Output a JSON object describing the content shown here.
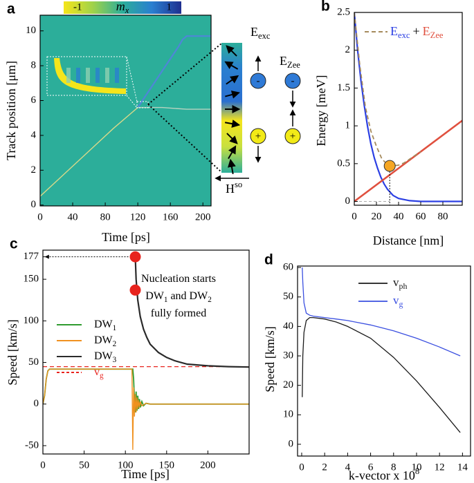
{
  "chart_data": [
    {
      "panel": "a",
      "type": "heatmap",
      "x_label": "Time [ps]",
      "y_label": "Track position [μm]",
      "xlim": [
        0,
        210
      ],
      "xticks": [
        0,
        40,
        80,
        120,
        160,
        200
      ],
      "ylim": [
        -0.05,
        10.9
      ],
      "yticks": [
        0,
        2,
        4,
        6,
        8,
        10
      ],
      "background": "#2cae9a",
      "colorbar": {
        "label": "m",
        "label_sub": "x",
        "lim": [
          -1,
          1
        ],
        "ticks": [
          -1,
          1
        ],
        "colors": [
          "#f5e51b",
          "#9fd24a",
          "#2cae9a",
          "#2a7fd0",
          "#1f2f8f"
        ]
      },
      "series": [
        {
          "color": "#d8d98a",
          "x": [
            0,
            30,
            60,
            90,
            120
          ],
          "values": [
            0.5,
            1.8,
            3.1,
            4.4,
            5.6
          ]
        },
        {
          "color": "#4f86d8",
          "x": [
            120,
            130,
            140,
            150,
            160,
            170,
            175,
            180,
            210
          ],
          "values": [
            5.6,
            6.3,
            7.0,
            7.7,
            8.4,
            9.1,
            9.5,
            9.7,
            9.7
          ]
        },
        {
          "color": "#b8d3c0",
          "x": [
            120,
            150,
            180,
            210
          ],
          "values": [
            5.6,
            5.6,
            5.5,
            5.5
          ]
        }
      ],
      "diagram": {
        "e_exc": {
          "name": "E",
          "sub": "exc"
        },
        "e_zee": {
          "name": "E",
          "sub": "Zee"
        },
        "h_so": {
          "name": "H",
          "sup": "so"
        },
        "minus": "-",
        "plus": "+"
      }
    },
    {
      "panel": "b",
      "type": "line",
      "x_label": "Distance [nm]",
      "y_label": "Energy [meV]",
      "xlim": [
        0,
        97.5
      ],
      "xticks": [
        0,
        20,
        40,
        60,
        80
      ],
      "ylim": [
        -0.05,
        2.5
      ],
      "yticks": [
        0,
        0.5,
        1,
        1.5,
        2,
        2.5
      ],
      "series": [
        {
          "name": "E",
          "sub": "exc",
          "color": "#2b3fe3",
          "x": [
            0,
            3,
            6,
            9,
            12,
            15,
            18,
            21,
            24,
            27,
            30,
            35,
            40,
            50,
            60,
            80,
            97.5
          ],
          "values": [
            2.5,
            2.0,
            1.6,
            1.27,
            0.99,
            0.76,
            0.58,
            0.44,
            0.32,
            0.23,
            0.16,
            0.08,
            0.04,
            0.01,
            0,
            0,
            0
          ]
        },
        {
          "name": "E",
          "sub": "Zee",
          "color": "#e0503f",
          "x": [
            0,
            97.5
          ],
          "values": [
            0,
            1.07
          ]
        },
        {
          "color": "#a58a5c",
          "dash": true,
          "x": [
            0,
            5,
            10,
            15,
            20,
            25,
            30,
            35,
            40,
            45,
            50,
            60
          ],
          "values": [
            2.5,
            1.8,
            1.25,
            0.93,
            0.73,
            0.56,
            0.49,
            0.47,
            0.48,
            0.51,
            0.56,
            0.66
          ]
        }
      ],
      "legend_join": "+",
      "minimum": {
        "x": 32,
        "y": 0.47,
        "color": "#f5a623"
      }
    },
    {
      "panel": "c",
      "type": "line",
      "x_label": "Time [ps]",
      "y_label": "Speed [km/s]",
      "xlim": [
        0,
        250
      ],
      "xticks": [
        0,
        50,
        100,
        150,
        200
      ],
      "ylim": [
        -60,
        185
      ],
      "yticks": [
        -50,
        0,
        50,
        100,
        150,
        177
      ],
      "series": [
        {
          "name": "DW",
          "sub": "1",
          "color": "#2f9b2f",
          "x": [
            0,
            2,
            4,
            6,
            8,
            10,
            20,
            50,
            80,
            100,
            108,
            109,
            110,
            111,
            112,
            113,
            114,
            115,
            116,
            117,
            118,
            120,
            122,
            125,
            130,
            140,
            250
          ],
          "values": [
            0,
            10,
            30,
            40,
            42,
            42,
            42,
            42,
            42,
            42,
            42,
            42,
            30,
            5,
            -10,
            15,
            -8,
            10,
            -6,
            6,
            -4,
            3,
            -2,
            1,
            0,
            0,
            0
          ]
        },
        {
          "name": "DW",
          "sub": "2",
          "color": "#f0911f",
          "x": [
            0,
            2,
            4,
            6,
            8,
            10,
            50,
            100,
            108,
            109,
            110,
            111,
            112,
            113,
            114,
            115,
            116,
            117,
            118,
            120,
            125,
            130,
            140,
            250
          ],
          "values": [
            0,
            10,
            30,
            40,
            42,
            42,
            42,
            42,
            42,
            -55,
            20,
            -15,
            12,
            -10,
            8,
            -6,
            5,
            -4,
            3,
            -2,
            1,
            0,
            0,
            0
          ]
        },
        {
          "name": "DW",
          "sub": "3",
          "color": "#2a2a2a",
          "x": [
            112,
            113,
            115,
            118,
            122,
            126,
            130,
            140,
            150,
            160,
            175,
            200,
            225,
            250
          ],
          "values": [
            177,
            150,
            125,
            105,
            90,
            80,
            72,
            62,
            56,
            52,
            48,
            46,
            45,
            44.5
          ]
        },
        {
          "name": "v",
          "sub": "g",
          "color": "#e8231d",
          "dash": true,
          "x": [
            0,
            250
          ],
          "values": [
            45,
            45
          ]
        }
      ],
      "markers": {
        "x": [
          112,
          112
        ],
        "y": [
          177,
          137
        ],
        "color": "#e8231d"
      },
      "annotations": [
        [
          {
            "text": "Nucleation starts"
          }
        ],
        [
          {
            "text": "DW"
          },
          {
            "text": "1",
            "sub": true
          },
          {
            "text": " and DW"
          },
          {
            "text": "2",
            "sub": true
          }
        ],
        [
          {
            "text": "fully formed"
          }
        ]
      ]
    },
    {
      "panel": "d",
      "type": "line",
      "x_label": "k-vector x 10",
      "x_label_sup": "8",
      "y_label": "Speed [km/s]",
      "xlim": [
        -0.36,
        14.7
      ],
      "xticks": [
        0,
        2,
        4,
        6,
        8,
        10,
        12,
        14
      ],
      "ylim": [
        -4,
        60.5
      ],
      "yticks": [
        0,
        10,
        20,
        30,
        40,
        50,
        60
      ],
      "series": [
        {
          "name": "v",
          "sub": "ph",
          "color": "#1a1a1a",
          "x": [
            0.05,
            0.1,
            0.2,
            0.4,
            0.7,
            1,
            2,
            3,
            4,
            6,
            8,
            10,
            12,
            13.8
          ],
          "values": [
            16,
            30,
            38,
            42,
            43,
            43,
            42.5,
            41.5,
            40,
            36,
            29.5,
            21.5,
            12.5,
            4
          ]
        },
        {
          "name": "v",
          "sub": "g",
          "color": "#3a4fe0",
          "x": [
            0.05,
            0.1,
            0.2,
            0.4,
            0.7,
            1,
            2,
            3,
            4,
            6,
            8,
            10,
            12,
            13.8
          ],
          "values": [
            60,
            55,
            48,
            44.5,
            43.8,
            43.5,
            43,
            42.5,
            42,
            40.5,
            38.5,
            36,
            33,
            30
          ]
        }
      ]
    }
  ]
}
